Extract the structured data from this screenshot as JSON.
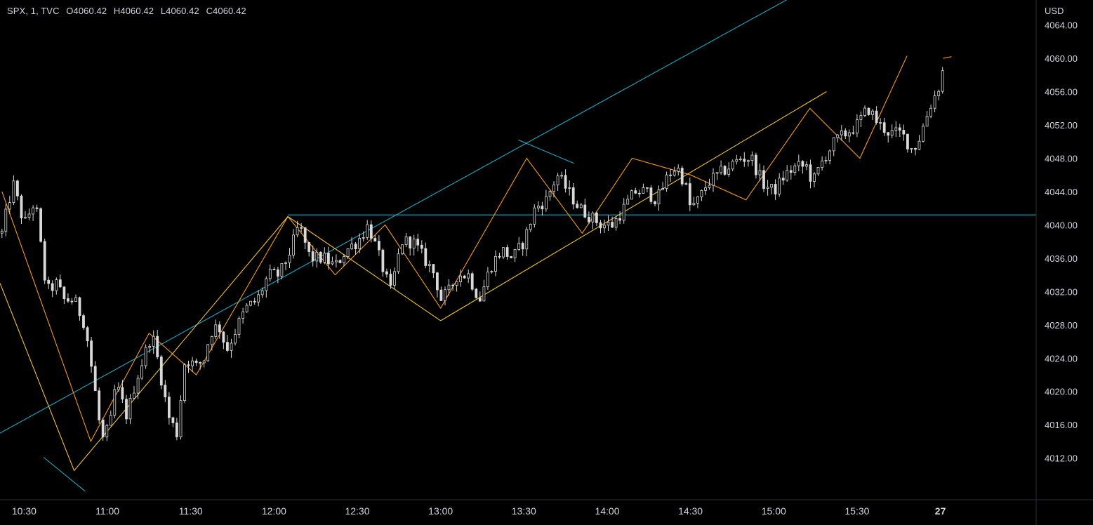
{
  "legend": {
    "symbol": "SPX, 1, TVC",
    "open": "O4060.42",
    "high": "H4060.42",
    "low": "L4060.42",
    "close": "C4060.42"
  },
  "colors": {
    "background": "#000000",
    "text": "#d1d4dc",
    "candle": "#d9d9d9",
    "cyan": "#1fa9c4",
    "orange": "#f39c12",
    "yellow": "#f1c232"
  },
  "chart_data": {
    "type": "candlestick",
    "currency": "USD",
    "ylim": [
      4007,
      4067
    ],
    "y_ticks": [
      "4064.00",
      "4060.00",
      "4056.00",
      "4052.00",
      "4048.00",
      "4044.00",
      "4040.00",
      "4036.00",
      "4032.00",
      "4028.00",
      "4024.00",
      "4020.00",
      "4016.00",
      "4012.00"
    ],
    "x_ticks": [
      {
        "label": "10:30",
        "t": 0
      },
      {
        "label": "11:00",
        "t": 30
      },
      {
        "label": "11:30",
        "t": 60
      },
      {
        "label": "12:00",
        "t": 90
      },
      {
        "label": "12:30",
        "t": 120
      },
      {
        "label": "13:00",
        "t": 150
      },
      {
        "label": "13:30",
        "t": 180
      },
      {
        "label": "14:00",
        "t": 210
      },
      {
        "label": "14:30",
        "t": 240
      },
      {
        "label": "15:00",
        "t": 270
      },
      {
        "label": "15:30",
        "t": 300
      },
      {
        "label": "27",
        "t": 330,
        "bold": true
      }
    ],
    "t_range": [
      -8.7,
      364.5
    ],
    "price_path": [
      [
        -8,
        4039
      ],
      [
        -4,
        4045
      ],
      [
        0,
        4040
      ],
      [
        4,
        4043
      ],
      [
        8,
        4032
      ],
      [
        12,
        4033
      ],
      [
        14,
        4031
      ],
      [
        18,
        4031
      ],
      [
        22,
        4028
      ],
      [
        26,
        4019
      ],
      [
        28,
        4014
      ],
      [
        31,
        4016
      ],
      [
        33,
        4021
      ],
      [
        37,
        4017
      ],
      [
        40,
        4021
      ],
      [
        42,
        4023
      ],
      [
        46,
        4027
      ],
      [
        48,
        4024
      ],
      [
        52,
        4017
      ],
      [
        55,
        4015
      ],
      [
        58,
        4024
      ],
      [
        62,
        4023
      ],
      [
        65,
        4024
      ],
      [
        67,
        4027
      ],
      [
        70,
        4028
      ],
      [
        73,
        4025
      ],
      [
        77,
        4028
      ],
      [
        80,
        4030
      ],
      [
        84,
        4031
      ],
      [
        88,
        4034
      ],
      [
        92,
        4034
      ],
      [
        96,
        4037
      ],
      [
        99,
        4040
      ],
      [
        103,
        4036
      ],
      [
        108,
        4036
      ],
      [
        112,
        4035
      ],
      [
        116,
        4037
      ],
      [
        120,
        4038
      ],
      [
        124,
        4040
      ],
      [
        128,
        4036
      ],
      [
        132,
        4032
      ],
      [
        136,
        4038
      ],
      [
        140,
        4038
      ],
      [
        144,
        4036
      ],
      [
        148,
        4034
      ],
      [
        150,
        4031
      ],
      [
        153,
        4032
      ],
      [
        156,
        4034
      ],
      [
        160,
        4034
      ],
      [
        164,
        4031
      ],
      [
        168,
        4035
      ],
      [
        172,
        4037
      ],
      [
        176,
        4036
      ],
      [
        180,
        4038
      ],
      [
        184,
        4042
      ],
      [
        188,
        4043
      ],
      [
        192,
        4046
      ],
      [
        196,
        4044
      ],
      [
        200,
        4042
      ],
      [
        204,
        4041
      ],
      [
        208,
        4040
      ],
      [
        212,
        4040
      ],
      [
        216,
        4042
      ],
      [
        220,
        4044
      ],
      [
        224,
        4044
      ],
      [
        228,
        4043
      ],
      [
        232,
        4046
      ],
      [
        235,
        4047
      ],
      [
        238,
        4045
      ],
      [
        240,
        4042
      ],
      [
        243,
        4043
      ],
      [
        246,
        4045
      ],
      [
        250,
        4046
      ],
      [
        254,
        4047
      ],
      [
        258,
        4048
      ],
      [
        262,
        4048
      ],
      [
        266,
        4045
      ],
      [
        270,
        4044
      ],
      [
        274,
        4046
      ],
      [
        278,
        4047
      ],
      [
        282,
        4047
      ],
      [
        284,
        4045
      ],
      [
        288,
        4048
      ],
      [
        292,
        4050
      ],
      [
        296,
        4051
      ],
      [
        300,
        4052
      ],
      [
        304,
        4054
      ],
      [
        308,
        4052
      ],
      [
        312,
        4051
      ],
      [
        316,
        4051
      ],
      [
        320,
        4049
      ],
      [
        322,
        4050
      ],
      [
        326,
        4054
      ],
      [
        330,
        4057
      ],
      [
        332,
        4060.4
      ]
    ],
    "drawings": {
      "cyan": [
        [
          [
            -8.7,
            4015
          ],
          [
            280,
            4068
          ]
        ],
        [
          [
            95,
            4041.2
          ],
          [
            364.5,
            4041.2
          ]
        ],
        [
          [
            178,
            4050.2
          ],
          [
            198,
            4047.4
          ]
        ],
        [
          [
            7,
            4012.1
          ],
          [
            22,
            4008
          ]
        ]
      ],
      "orange": [
        [
          [
            -8,
            4044
          ],
          [
            24,
            4014
          ],
          [
            45,
            4027
          ],
          [
            62,
            4022
          ],
          [
            95,
            4041
          ],
          [
            112,
            4034
          ],
          [
            130,
            4040
          ],
          [
            150,
            4030
          ],
          [
            181,
            4048
          ],
          [
            201,
            4039
          ],
          [
            219,
            4048
          ],
          [
            240,
            4046
          ],
          [
            260,
            4043
          ],
          [
            283,
            4054
          ],
          [
            301,
            4048
          ],
          [
            318,
            4060.3
          ]
        ],
        [
          [
            331,
            4060
          ],
          [
            334,
            4060.2
          ]
        ]
      ],
      "yellow": [
        [
          [
            -8.7,
            4033
          ],
          [
            18,
            4010.5
          ],
          [
            95,
            4041
          ],
          [
            150,
            4028.5
          ]
        ],
        [
          [
            150,
            4028.5
          ],
          [
            289,
            4056
          ]
        ]
      ]
    }
  }
}
